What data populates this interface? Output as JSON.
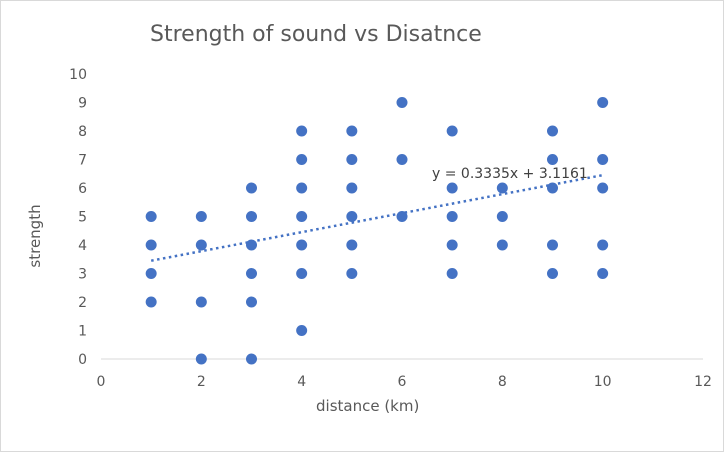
{
  "chart_data": {
    "type": "scatter",
    "title": "Strength of sound vs Disatnce",
    "xlabel": "distance (km)",
    "ylabel": "strength",
    "xlim": [
      0,
      12
    ],
    "ylim": [
      0,
      10
    ],
    "x_ticks": [
      0,
      2,
      4,
      6,
      8,
      10,
      12
    ],
    "y_ticks": [
      0,
      1,
      2,
      3,
      4,
      5,
      6,
      7,
      8,
      9,
      10
    ],
    "grid": false,
    "legend": "none",
    "marker_color": "#4472C4",
    "trendline": {
      "type": "linear",
      "slope": 0.3335,
      "intercept": 3.1161,
      "x_range": [
        1,
        10
      ],
      "equation_label": "y = 0.3335x + 3.1161",
      "style": "dotted",
      "color": "#4472C4"
    },
    "points": [
      {
        "x": 1,
        "y": 2
      },
      {
        "x": 1,
        "y": 3
      },
      {
        "x": 1,
        "y": 4
      },
      {
        "x": 1,
        "y": 5
      },
      {
        "x": 2,
        "y": 0
      },
      {
        "x": 2,
        "y": 2
      },
      {
        "x": 2,
        "y": 4
      },
      {
        "x": 2,
        "y": 5
      },
      {
        "x": 3,
        "y": 0
      },
      {
        "x": 3,
        "y": 2
      },
      {
        "x": 3,
        "y": 3
      },
      {
        "x": 3,
        "y": 4
      },
      {
        "x": 3,
        "y": 5
      },
      {
        "x": 3,
        "y": 6
      },
      {
        "x": 4,
        "y": 1
      },
      {
        "x": 4,
        "y": 3
      },
      {
        "x": 4,
        "y": 4
      },
      {
        "x": 4,
        "y": 5
      },
      {
        "x": 4,
        "y": 6
      },
      {
        "x": 4,
        "y": 7
      },
      {
        "x": 4,
        "y": 8
      },
      {
        "x": 5,
        "y": 3
      },
      {
        "x": 5,
        "y": 4
      },
      {
        "x": 5,
        "y": 5
      },
      {
        "x": 5,
        "y": 6
      },
      {
        "x": 5,
        "y": 7
      },
      {
        "x": 5,
        "y": 8
      },
      {
        "x": 6,
        "y": 5
      },
      {
        "x": 6,
        "y": 7
      },
      {
        "x": 6,
        "y": 9
      },
      {
        "x": 7,
        "y": 3
      },
      {
        "x": 7,
        "y": 4
      },
      {
        "x": 7,
        "y": 5
      },
      {
        "x": 7,
        "y": 6
      },
      {
        "x": 7,
        "y": 8
      },
      {
        "x": 8,
        "y": 4
      },
      {
        "x": 8,
        "y": 5
      },
      {
        "x": 8,
        "y": 6
      },
      {
        "x": 9,
        "y": 3
      },
      {
        "x": 9,
        "y": 4
      },
      {
        "x": 9,
        "y": 6
      },
      {
        "x": 9,
        "y": 7
      },
      {
        "x": 9,
        "y": 8
      },
      {
        "x": 10,
        "y": 3
      },
      {
        "x": 10,
        "y": 4
      },
      {
        "x": 10,
        "y": 6
      },
      {
        "x": 10,
        "y": 7
      },
      {
        "x": 10,
        "y": 9
      }
    ]
  }
}
